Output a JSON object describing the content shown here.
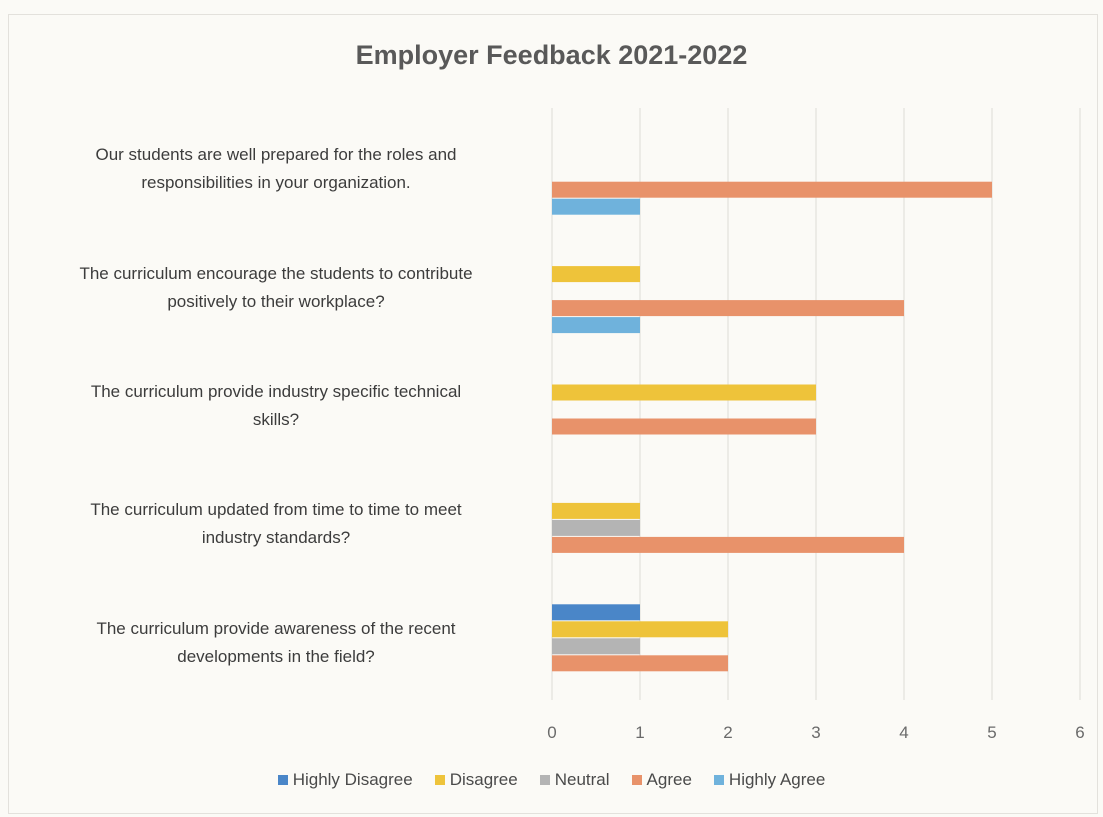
{
  "chart_data": {
    "type": "bar",
    "orientation": "horizontal",
    "title": "Employer Feedback 2021-2022",
    "xlim": [
      0,
      6
    ],
    "xticks": [
      "0",
      "1",
      "2",
      "3",
      "4",
      "5",
      "6"
    ],
    "grid": true,
    "legend_placement": "bottom",
    "categories": [
      "Our students are well prepared for the roles and responsibilities in your organization.",
      "The curriculum encourage the students to contribute positively to their workplace?",
      "The curriculum provide industry specific technical skills?",
      "The curriculum updated from time to time to meet industry standards?",
      "The curriculum provide awareness of the recent developments in the field?"
    ],
    "category_lines": [
      [
        "Our students are well prepared for the roles and",
        "responsibilities in your organization."
      ],
      [
        "The curriculum encourage the students to contribute",
        "positively to their workplace?"
      ],
      [
        "The curriculum provide industry specific technical",
        "skills?"
      ],
      [
        "The curriculum updated from time to time to meet",
        "industry standards?"
      ],
      [
        "The curriculum provide awareness of the recent",
        "developments in the field?"
      ]
    ],
    "series": [
      {
        "name": "Highly Disagree",
        "color": "#4a86c8",
        "values": [
          0,
          0,
          0,
          0,
          1
        ]
      },
      {
        "name": "Disagree",
        "color": "#eec33a",
        "values": [
          0,
          1,
          3,
          1,
          2
        ]
      },
      {
        "name": "Neutral",
        "color": "#b4b4b4",
        "values": [
          0,
          0,
          0,
          1,
          1
        ]
      },
      {
        "name": "Agree",
        "color": "#e8926a",
        "values": [
          5,
          4,
          3,
          4,
          2
        ]
      },
      {
        "name": "Highly Agree",
        "color": "#6fb2dc",
        "values": [
          1,
          1,
          0,
          0,
          0
        ]
      }
    ]
  }
}
